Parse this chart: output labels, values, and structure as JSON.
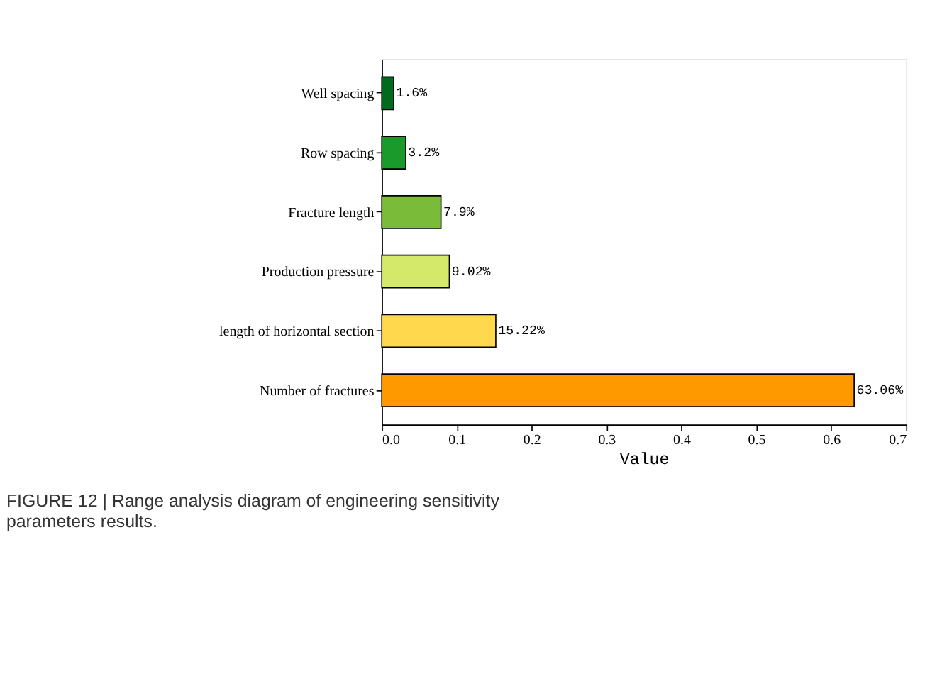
{
  "chart_data": {
    "type": "bar",
    "orientation": "horizontal",
    "xlabel": "Value",
    "categories": [
      "Well spacing",
      "Row spacing",
      "Fracture length",
      "Production pressure",
      "length of horizontal section",
      "Number of fractures"
    ],
    "values": [
      0.016,
      0.032,
      0.079,
      0.0902,
      0.1522,
      0.6306
    ],
    "colors": [
      "#006b1e",
      "#1a9a2a",
      "#7abb3a",
      "#d4e86a",
      "#ffd84e",
      "#ff9900"
    ],
    "value_labels": [
      "1.6%",
      "3.2%",
      "7.9%",
      "9.02%",
      "15.22%",
      "63.06%"
    ],
    "xlim": [
      0,
      0.7
    ],
    "xticks": [
      {
        "value": 0,
        "label": "0.0"
      },
      0.1,
      0.2,
      0.3,
      0.4,
      0.5,
      0.6,
      0.7
    ],
    "annotations": [
      "FIGURE 12 | Range analysis diagram of engineering sensitivity parameters results."
    ]
  }
}
